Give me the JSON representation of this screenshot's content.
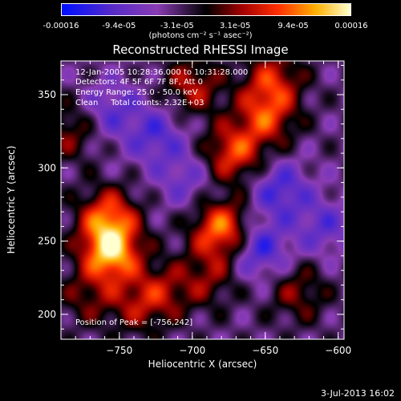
{
  "colorbar": {
    "tick_labels": [
      "-0.00016",
      "-9.4e-05",
      "-3.1e-05",
      "3.1e-05",
      "9.4e-05",
      "0.00016"
    ],
    "units": "(photons cm⁻² s⁻¹ asec⁻²)",
    "colors": [
      "#0010ff",
      "#5a2cc8",
      "#8a3cb4",
      "#000000",
      "#a00000",
      "#ff3000",
      "#ffb000",
      "#ffffd0"
    ]
  },
  "title": "Reconstructed RHESSI Image",
  "annotation": {
    "time": "12-Jan-2005 10:28:36.000 to 10:31:28.000",
    "detectors": "Detectors: 4F 5F 6F 7F 8F, Att 0",
    "energy": "Energy Range: 25.0 - 50.0 keV",
    "method": "Clean     Total counts: 2.32E+03",
    "peak": "Position of Peak = [-756,242]"
  },
  "footer": {
    "timestamp": "3-Jul-2013 16:02"
  },
  "chart_data": {
    "type": "heatmap",
    "title": "Reconstructed RHESSI Image",
    "xlabel": "Heliocentric X (arcsec)",
    "ylabel": "Heliocentric Y (arcsec)",
    "xlim": [
      -790,
      -596
    ],
    "ylim": [
      183,
      373
    ],
    "xticks": [
      -750,
      -700,
      -650,
      -600
    ],
    "yticks": [
      200,
      250,
      300,
      350
    ],
    "colorbar_range": [
      -0.00016,
      0.00016
    ],
    "peak": [
      -756,
      242
    ],
    "sources": [
      {
        "x": -756,
        "y": 242,
        "intensity": 0.00016
      },
      {
        "x": -758,
        "y": 266,
        "intensity": 0.00012
      },
      {
        "x": -680,
        "y": 258,
        "intensity": 0.00014
      },
      {
        "x": -672,
        "y": 310,
        "intensity": 0.00011
      },
      {
        "x": -650,
        "y": 335,
        "intensity": 0.0001
      },
      {
        "x": -700,
        "y": 356,
        "intensity": 8e-05
      },
      {
        "x": -645,
        "y": 360,
        "intensity": 9e-05
      },
      {
        "x": -722,
        "y": 215,
        "intensity": 7e-05
      },
      {
        "x": -690,
        "y": 225,
        "intensity": 6e-05
      },
      {
        "x": -628,
        "y": 215,
        "intensity": 6e-05
      },
      {
        "x": -785,
        "y": 325,
        "intensity": 6e-05
      },
      {
        "x": -772,
        "y": 212,
        "intensity": 5e-05
      },
      {
        "x": -740,
        "y": 205,
        "intensity": 5e-05
      },
      {
        "x": -655,
        "y": 245,
        "intensity": -9e-05
      },
      {
        "x": -640,
        "y": 285,
        "intensity": -8e-05
      },
      {
        "x": -725,
        "y": 322,
        "intensity": -7e-05
      },
      {
        "x": -755,
        "y": 340,
        "intensity": -6e-05
      },
      {
        "x": -610,
        "y": 260,
        "intensity": -6e-05
      },
      {
        "x": -705,
        "y": 292,
        "intensity": -5e-05
      }
    ]
  }
}
